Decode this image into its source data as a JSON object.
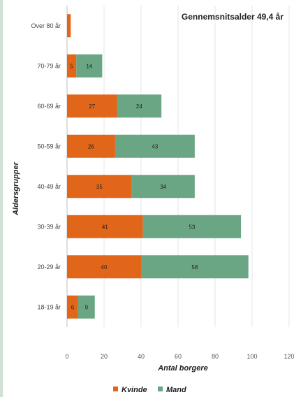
{
  "chart_data": {
    "type": "bar",
    "orientation": "horizontal",
    "stacked": true,
    "title": "Gennemsnitsalder 49,4 år",
    "xlabel": "Antal borgere",
    "ylabel": "Aldersgrupper",
    "xlim": [
      0,
      120
    ],
    "xticks": [
      "0",
      "20",
      "40",
      "60",
      "80",
      "100",
      "120"
    ],
    "grid": true,
    "legend_position": "bottom",
    "categories": [
      "Over 80 år",
      "70-79 år",
      "60-69 år",
      "50-59 år",
      "40-49 år",
      "30-39 år",
      "20-29 år",
      "18-19 år"
    ],
    "series": [
      {
        "name": "Kvinde",
        "color": "#e2661a",
        "values": [
          2,
          5,
          27,
          26,
          35,
          41,
          40,
          6
        ],
        "labels": [
          "",
          "5",
          "27",
          "26",
          "35",
          "41",
          "40",
          "6"
        ]
      },
      {
        "name": "Mand",
        "color": "#6aa584",
        "values": [
          0,
          14,
          24,
          43,
          34,
          53,
          58,
          9
        ],
        "labels": [
          "",
          "14",
          "24",
          "43",
          "34",
          "53",
          "58",
          "9"
        ]
      }
    ]
  }
}
